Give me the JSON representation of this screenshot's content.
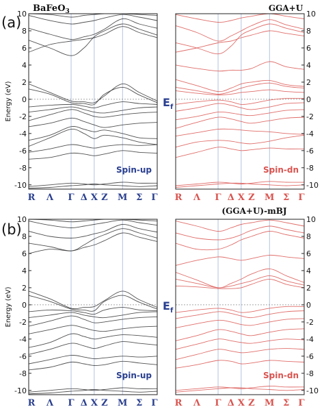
{
  "figure": {
    "rows": [
      {
        "label": "(a)",
        "method": "GGA+U"
      },
      {
        "label": "(b)",
        "method": "(GGA+U)-mBJ"
      }
    ],
    "material": "BaFeO",
    "material_sub": "3",
    "fermi_label": "E",
    "fermi_sub": "f"
  },
  "chart_data": [
    {
      "type": "line",
      "title": "BaFeO3",
      "row": "(a)",
      "channel": "Spin-up",
      "ylabel": "Energy (eV)",
      "ylim": [
        -10.5,
        10
      ],
      "yticks": [
        10,
        8,
        6,
        4,
        2,
        0,
        -2,
        -4,
        -6,
        -8,
        -10
      ],
      "kpoints": [
        "R",
        "Λ",
        "Γ",
        "Δ",
        "X",
        "Z",
        "M",
        "Σ",
        "Γ"
      ],
      "kpos": [
        0,
        0.165,
        0.33,
        0.43,
        0.51,
        0.59,
        0.73,
        0.86,
        1.0
      ],
      "highsym": [
        2,
        4,
        6
      ],
      "fermi": 0,
      "color": "#333333",
      "series": [
        {
          "values": [
            -10.4,
            -10.3,
            -10.1,
            -10.0,
            -9.9,
            -10.0,
            -10.1,
            -10.2,
            -10.1
          ]
        },
        {
          "values": [
            -10.2,
            -10.0,
            -9.8,
            -9.9,
            -10.0,
            -9.9,
            -9.7,
            -9.8,
            -9.8
          ]
        },
        {
          "values": [
            -7.0,
            -6.8,
            -6.3,
            -6.4,
            -6.6,
            -6.4,
            -6.0,
            -6.2,
            -6.3
          ]
        },
        {
          "values": [
            -6.2,
            -5.8,
            -5.3,
            -5.5,
            -5.7,
            -5.5,
            -5.3,
            -5.4,
            -5.3
          ]
        },
        {
          "values": [
            -5.5,
            -4.5,
            -3.5,
            -4.0,
            -4.6,
            -4.2,
            -4.5,
            -5.0,
            -5.3
          ]
        },
        {
          "values": [
            -4.8,
            -4.2,
            -3.2,
            -3.5,
            -3.8,
            -3.6,
            -4.0,
            -4.5,
            -4.6
          ]
        },
        {
          "values": [
            -3.2,
            -2.8,
            -2.2,
            -2.6,
            -3.0,
            -3.3,
            -3.0,
            -2.8,
            -2.7
          ]
        },
        {
          "values": [
            -2.5,
            -1.8,
            -1.2,
            -1.6,
            -2.0,
            -2.1,
            -1.8,
            -1.6,
            -1.5
          ]
        },
        {
          "values": [
            -1.5,
            -1.2,
            -0.9,
            -1.2,
            -1.5,
            -1.6,
            -1.3,
            -1.0,
            -0.9
          ]
        },
        {
          "values": [
            -0.9,
            -0.7,
            -0.6,
            -0.8,
            -1.0,
            -0.7,
            -0.3,
            -0.5,
            -0.6
          ]
        },
        {
          "values": [
            1.8,
            0.8,
            -0.2,
            -0.3,
            -0.4,
            0.4,
            1.8,
            0.8,
            -0.2
          ]
        },
        {
          "values": [
            1.2,
            0.6,
            -0.4,
            -0.5,
            -0.6,
            0.6,
            1.4,
            0.5,
            -0.4
          ]
        },
        {
          "values": [
            5.5,
            6.4,
            6.8,
            7.0,
            7.2,
            7.6,
            8.5,
            7.8,
            7.2
          ]
        },
        {
          "values": [
            6.9,
            6.0,
            5.1,
            6.0,
            7.3,
            8.0,
            8.8,
            8.2,
            7.5
          ]
        },
        {
          "values": [
            8.3,
            7.6,
            7.0,
            7.3,
            7.6,
            8.2,
            9.4,
            8.8,
            8.3
          ]
        },
        {
          "values": [
            9.8,
            9.2,
            8.8,
            9.0,
            9.2,
            9.5,
            9.9,
            9.6,
            9.2
          ]
        },
        {
          "values": [
            10.0,
            9.9,
            9.6,
            9.8,
            9.9,
            10.0,
            10.0,
            9.9,
            9.8
          ]
        }
      ]
    },
    {
      "type": "line",
      "title": "GGA+U",
      "row": "(a)",
      "channel": "Spin-dn",
      "ylim": [
        -10.5,
        10
      ],
      "yticks": [
        10,
        8,
        6,
        4,
        2,
        0,
        -2,
        -4,
        -6,
        -8,
        -10
      ],
      "kpoints": [
        "R",
        "Λ",
        "Γ",
        "Δ",
        "X",
        "Z",
        "M",
        "Σ",
        "Γ"
      ],
      "kpos": [
        0,
        0.165,
        0.33,
        0.43,
        0.51,
        0.59,
        0.73,
        0.86,
        1.0
      ],
      "highsym": [
        2,
        4,
        6
      ],
      "fermi": 0,
      "color": "#d9544f",
      "series": [
        {
          "values": [
            -10.3,
            -10.1,
            -9.9,
            -9.8,
            -9.8,
            -9.9,
            -10.0,
            -10.1,
            -10.0
          ]
        },
        {
          "values": [
            -10.1,
            -9.9,
            -9.7,
            -9.8,
            -9.9,
            -9.8,
            -9.6,
            -9.7,
            -9.7
          ]
        },
        {
          "values": [
            -6.8,
            -6.2,
            -5.6,
            -5.8,
            -6.0,
            -5.9,
            -5.7,
            -5.8,
            -5.8
          ]
        },
        {
          "values": [
            -5.6,
            -5.0,
            -4.8,
            -4.9,
            -5.1,
            -5.2,
            -4.9,
            -4.5,
            -4.2
          ]
        },
        {
          "values": [
            -4.3,
            -3.9,
            -3.5,
            -3.5,
            -3.6,
            -3.7,
            -3.8,
            -4.0,
            -4.1
          ]
        },
        {
          "values": [
            -3.4,
            -2.7,
            -2.1,
            -2.3,
            -2.6,
            -2.8,
            -2.5,
            -2.2,
            -2.1
          ]
        },
        {
          "values": [
            -2.4,
            -2.0,
            -1.5,
            -1.6,
            -1.8,
            -1.9,
            -1.6,
            -1.3,
            -1.2
          ]
        },
        {
          "values": [
            -1.4,
            -1.0,
            -0.5,
            -0.7,
            -1.0,
            -1.2,
            -0.9,
            -0.5,
            -0.4
          ]
        },
        {
          "values": [
            -0.6,
            -0.3,
            -0.1,
            -0.3,
            -0.6,
            -0.5,
            -0.1,
            0.1,
            0.1
          ]
        },
        {
          "values": [
            1.0,
            0.7,
            0.5,
            0.6,
            0.8,
            0.9,
            1.1,
            0.9,
            0.8
          ]
        },
        {
          "values": [
            1.4,
            1.0,
            0.6,
            0.9,
            1.3,
            1.6,
            1.9,
            1.5,
            1.3
          ]
        },
        {
          "values": [
            2.3,
            1.6,
            0.9,
            1.3,
            1.8,
            2.0,
            2.2,
            1.7,
            1.5
          ]
        },
        {
          "values": [
            4.0,
            3.6,
            3.3,
            3.4,
            3.4,
            3.6,
            4.4,
            3.8,
            3.5
          ]
        },
        {
          "values": [
            5.5,
            6.0,
            6.6,
            6.8,
            7.2,
            7.5,
            8.0,
            7.7,
            7.4
          ]
        },
        {
          "values": [
            6.6,
            6.0,
            5.3,
            6.2,
            7.5,
            8.1,
            8.8,
            8.3,
            7.8
          ]
        },
        {
          "values": [
            8.6,
            7.8,
            6.8,
            7.4,
            8.0,
            8.6,
            9.3,
            8.7,
            8.2
          ]
        },
        {
          "values": [
            9.9,
            9.4,
            9.0,
            9.2,
            9.5,
            9.7,
            10.0,
            9.7,
            9.4
          ]
        }
      ]
    },
    {
      "type": "line",
      "row": "(b)",
      "channel": "Spin-up",
      "ylabel": "Energy (eV)",
      "ylim": [
        -10.5,
        10
      ],
      "yticks": [
        10,
        8,
        6,
        4,
        2,
        0,
        -2,
        -4,
        -6,
        -8,
        -10
      ],
      "kpoints": [
        "R",
        "Λ",
        "Γ",
        "Δ",
        "X",
        "Z",
        "M",
        "Σ",
        "Γ"
      ],
      "kpos": [
        0,
        0.165,
        0.33,
        0.43,
        0.51,
        0.59,
        0.73,
        0.86,
        1.0
      ],
      "highsym": [
        2,
        4,
        6
      ],
      "fermi": 0,
      "color": "#333333",
      "series": [
        {
          "values": [
            -10.4,
            -10.3,
            -10.1,
            -10.0,
            -9.9,
            -10.0,
            -10.1,
            -10.2,
            -10.1
          ]
        },
        {
          "values": [
            -10.2,
            -10.0,
            -9.8,
            -9.9,
            -10.0,
            -9.9,
            -9.7,
            -9.8,
            -9.8
          ]
        },
        {
          "values": [
            -7.6,
            -7.3,
            -6.7,
            -6.9,
            -7.1,
            -7.0,
            -6.6,
            -6.8,
            -7.0
          ]
        },
        {
          "values": [
            -6.9,
            -6.4,
            -5.9,
            -6.1,
            -6.3,
            -6.2,
            -6.0,
            -6.1,
            -6.0
          ]
        },
        {
          "values": [
            -5.8,
            -5.2,
            -4.5,
            -4.8,
            -5.1,
            -4.8,
            -4.3,
            -4.5,
            -4.7
          ]
        },
        {
          "values": [
            -5.0,
            -4.4,
            -3.4,
            -3.7,
            -4.0,
            -3.8,
            -3.5,
            -3.6,
            -3.8
          ]
        },
        {
          "values": [
            -3.4,
            -2.9,
            -2.4,
            -2.7,
            -3.0,
            -3.1,
            -2.8,
            -2.6,
            -2.5
          ]
        },
        {
          "values": [
            -2.5,
            -1.9,
            -1.3,
            -1.7,
            -2.1,
            -2.0,
            -1.7,
            -1.5,
            -1.4
          ]
        },
        {
          "values": [
            -1.5,
            -1.2,
            -0.9,
            -1.2,
            -1.4,
            -1.5,
            -1.2,
            -0.9,
            -0.8
          ]
        },
        {
          "values": [
            -0.8,
            -0.6,
            -0.7,
            -0.9,
            -1.1,
            -0.6,
            -0.3,
            -0.6,
            -0.7
          ]
        },
        {
          "values": [
            1.6,
            0.7,
            -0.4,
            -0.3,
            -0.2,
            0.5,
            1.6,
            0.6,
            -0.3
          ]
        },
        {
          "values": [
            1.1,
            0.4,
            -0.5,
            -0.6,
            -0.7,
            0.4,
            1.1,
            0.3,
            -0.5
          ]
        },
        {
          "values": [
            6.0,
            6.5,
            6.3,
            6.7,
            7.0,
            7.5,
            8.4,
            7.9,
            7.4
          ]
        },
        {
          "values": [
            7.2,
            6.8,
            6.3,
            7.0,
            7.7,
            8.2,
            8.9,
            8.4,
            7.8
          ]
        },
        {
          "values": [
            8.6,
            8.0,
            7.8,
            8.0,
            8.3,
            8.6,
            9.4,
            8.9,
            8.5
          ]
        },
        {
          "values": [
            9.8,
            9.3,
            9.0,
            9.2,
            9.4,
            9.6,
            9.9,
            9.6,
            9.3
          ]
        },
        {
          "values": [
            10.0,
            9.9,
            9.7,
            9.8,
            9.9,
            10.0,
            10.0,
            9.9,
            9.8
          ]
        }
      ]
    },
    {
      "type": "line",
      "title": "(GGA+U)-mBJ",
      "row": "(b)",
      "channel": "Spin-dn",
      "ylim": [
        -10.5,
        10
      ],
      "yticks": [
        10,
        8,
        6,
        4,
        2,
        0,
        -2,
        -4,
        -6,
        -8,
        -10
      ],
      "kpoints": [
        "R",
        "Λ",
        "Γ",
        "Δ",
        "X",
        "Z",
        "M",
        "Σ",
        "Γ"
      ],
      "kpos": [
        0,
        0.165,
        0.33,
        0.43,
        0.51,
        0.59,
        0.73,
        0.86,
        1.0
      ],
      "highsym": [
        2,
        4,
        6
      ],
      "fermi": 0,
      "color": "#d9544f",
      "series": [
        {
          "values": [
            -10.2,
            -10.0,
            -9.8,
            -9.7,
            -9.7,
            -9.8,
            -9.9,
            -10.0,
            -9.9
          ]
        },
        {
          "values": [
            -10.0,
            -9.8,
            -9.6,
            -9.7,
            -9.8,
            -9.7,
            -9.5,
            -9.6,
            -9.6
          ]
        },
        {
          "values": [
            -7.4,
            -7.0,
            -6.5,
            -6.6,
            -6.9,
            -6.8,
            -6.5,
            -6.6,
            -6.7
          ]
        },
        {
          "values": [
            -6.4,
            -5.8,
            -5.2,
            -5.4,
            -5.6,
            -5.5,
            -5.2,
            -5.1,
            -5.2
          ]
        },
        {
          "values": [
            -5.2,
            -4.6,
            -4.0,
            -4.2,
            -4.4,
            -4.5,
            -4.2,
            -4.0,
            -4.1
          ]
        },
        {
          "values": [
            -4.2,
            -3.6,
            -2.9,
            -3.1,
            -3.4,
            -3.6,
            -3.2,
            -2.9,
            -2.8
          ]
        },
        {
          "values": [
            -2.7,
            -2.2,
            -1.8,
            -2.0,
            -2.3,
            -2.4,
            -2.0,
            -1.7,
            -1.6
          ]
        },
        {
          "values": [
            -1.6,
            -1.2,
            -0.8,
            -1.0,
            -1.3,
            -1.5,
            -1.1,
            -0.8,
            -0.7
          ]
        },
        {
          "values": [
            -0.9,
            -0.6,
            -0.4,
            -0.6,
            -0.9,
            -0.8,
            -0.4,
            -0.2,
            -0.2
          ]
        },
        {
          "values": [
            2.2,
            2.1,
            1.9,
            1.9,
            2.0,
            2.4,
            3.0,
            2.4,
            2.0
          ]
        },
        {
          "values": [
            3.0,
            2.5,
            2.0,
            2.2,
            2.5,
            2.8,
            3.4,
            2.8,
            2.3
          ]
        },
        {
          "values": [
            3.8,
            2.9,
            2.0,
            2.5,
            3.0,
            3.6,
            4.2,
            3.4,
            2.6
          ]
        },
        {
          "values": [
            4.6,
            5.2,
            5.6,
            5.4,
            5.2,
            5.4,
            5.8,
            5.6,
            5.4
          ]
        },
        {
          "values": [
            7.2,
            6.5,
            6.5,
            7.0,
            7.6,
            8.0,
            8.6,
            8.2,
            7.8
          ]
        },
        {
          "values": [
            8.4,
            7.8,
            7.6,
            7.8,
            8.2,
            8.7,
            9.2,
            8.8,
            8.4
          ]
        },
        {
          "values": [
            9.8,
            9.2,
            8.6,
            9.0,
            9.4,
            9.6,
            9.9,
            9.6,
            9.2
          ]
        }
      ]
    }
  ]
}
